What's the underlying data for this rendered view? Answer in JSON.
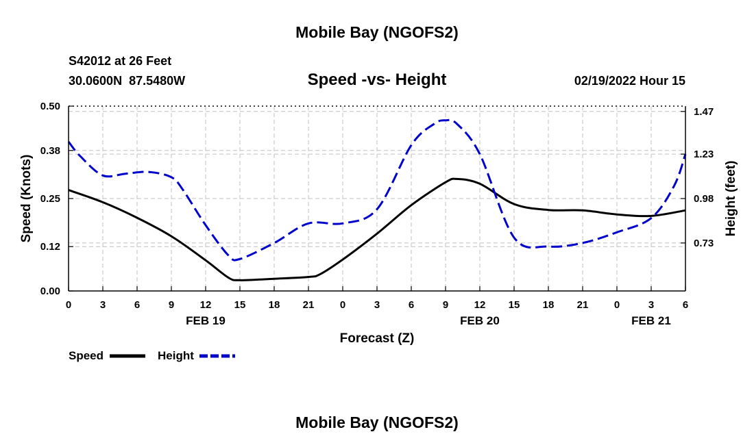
{
  "chart_data": {
    "type": "line",
    "title": "Mobile Bay (NGOFS2)",
    "subtitle": "Speed -vs- Height",
    "station_line1": "S42012 at 26 Feet",
    "station_line2": "30.0600N  87.5480W",
    "datetime": "02/19/2022 Hour 15",
    "footer_title": "Mobile Bay (NGOFS2)",
    "xlabel": "Forecast (Z)",
    "ylabel_left": "Speed (Knots)",
    "ylabel_right": "Height (feet)",
    "x_range": [
      0,
      54
    ],
    "x_tick_labels": [
      "0",
      "3",
      "6",
      "9",
      "12",
      "15",
      "18",
      "21",
      "0",
      "3",
      "6",
      "9",
      "12",
      "15",
      "18",
      "21",
      "0",
      "3",
      "6"
    ],
    "day_labels": [
      {
        "label": "FEB 19",
        "x": 12
      },
      {
        "label": "FEB 20",
        "x": 36
      },
      {
        "label": "FEB 21",
        "x": 51
      }
    ],
    "ylim_left": [
      0,
      0.5
    ],
    "yticks_left": [
      "0.00",
      "0.12",
      "0.25",
      "0.38",
      "0.50"
    ],
    "ylim_right": [
      0.46,
      1.5
    ],
    "yticks_right": [
      "0.73",
      "0.98",
      "1.23",
      "1.47"
    ],
    "grid": true,
    "series": [
      {
        "name": "Speed",
        "axis": "left",
        "color": "#000000",
        "dash": "solid",
        "x": [
          0,
          3,
          6,
          9,
          12,
          14,
          15,
          18,
          21,
          22,
          24,
          27,
          30,
          33,
          34,
          36,
          39,
          42,
          45,
          48,
          51,
          54
        ],
        "y": [
          0.273,
          0.24,
          0.198,
          0.148,
          0.083,
          0.036,
          0.029,
          0.033,
          0.038,
          0.045,
          0.085,
          0.155,
          0.232,
          0.294,
          0.303,
          0.29,
          0.235,
          0.219,
          0.218,
          0.207,
          0.203,
          0.218
        ]
      },
      {
        "name": "Height",
        "axis": "right",
        "color": "#0000cc",
        "dash": "dashed",
        "x": [
          0,
          1,
          3,
          5,
          7,
          9,
          10,
          12,
          14,
          15,
          18,
          21,
          24,
          27,
          30,
          32,
          33,
          34,
          36,
          39,
          42,
          45,
          48,
          51,
          53,
          54
        ],
        "y": [
          1.3,
          1.22,
          1.11,
          1.12,
          1.13,
          1.1,
          1.03,
          0.83,
          0.66,
          0.64,
          0.73,
          0.84,
          0.84,
          0.92,
          1.28,
          1.4,
          1.42,
          1.4,
          1.23,
          0.76,
          0.71,
          0.73,
          0.79,
          0.87,
          1.05,
          1.23
        ]
      }
    ]
  },
  "legend": {
    "speed_label": "Speed",
    "height_label": "Height",
    "speed_color": "#000000",
    "height_color": "#0000cc"
  }
}
